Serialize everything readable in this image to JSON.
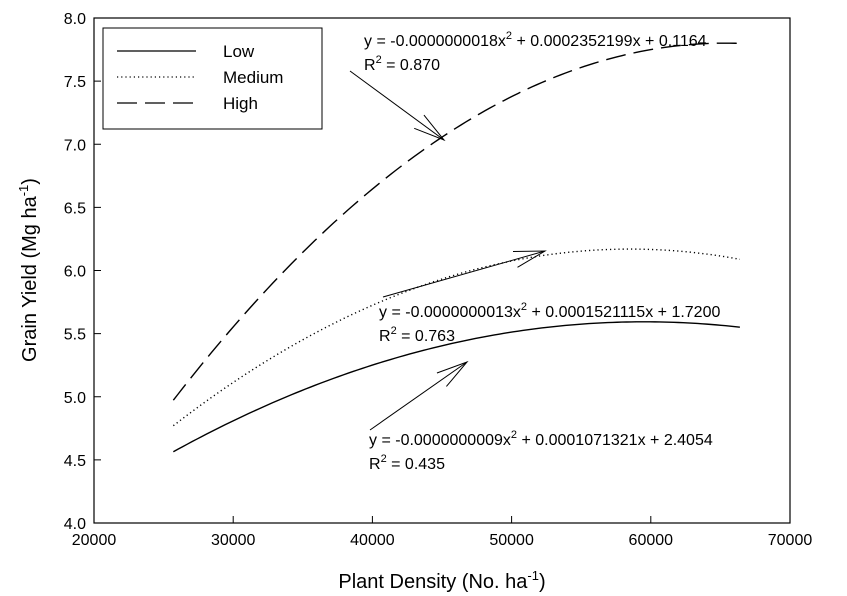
{
  "chart_data": {
    "type": "line",
    "title": "",
    "xlabel": "Plant Density (No. ha",
    "xlabel_sup": "-1",
    "xlabel_tail": ")",
    "ylabel": "Grain Yield (Mg ha",
    "ylabel_sup": "-1",
    "ylabel_tail": ")",
    "xlim": [
      20000,
      70000
    ],
    "ylim": [
      4.0,
      8.0
    ],
    "x_ticks": [
      20000,
      30000,
      40000,
      50000,
      60000,
      70000
    ],
    "x_tick_labels": [
      "20000",
      "30000",
      "40000",
      "50000",
      "60000",
      "70000"
    ],
    "y_ticks": [
      4.0,
      4.5,
      5.0,
      5.5,
      6.0,
      6.5,
      7.0,
      7.5,
      8.0
    ],
    "y_tick_labels": [
      "4.0",
      "4.5",
      "5.0",
      "5.5",
      "6.0",
      "6.5",
      "7.0",
      "7.5",
      "8.0"
    ],
    "grid": false,
    "legend_position": "top-left",
    "series": [
      {
        "name": "Low",
        "style": "solid",
        "x_range": [
          25700,
          66400
        ],
        "coefficients": {
          "a": -9e-10,
          "b": 0.0001071321,
          "c": 2.4054
        },
        "equation_parts": [
          "y = -0.0000000009x",
          "2",
          " + 0.0001071321x + 2.4054"
        ],
        "r2_label": "R",
        "r2_sup": "2",
        "r2_value": " = 0.435"
      },
      {
        "name": "Medium",
        "style": "dotted",
        "x_range": [
          25700,
          66400
        ],
        "coefficients": {
          "a": -1.3e-09,
          "b": 0.0001521115,
          "c": 1.72
        },
        "equation_parts": [
          "y = -0.0000000013x",
          "2",
          " + 0.0001521115x + 1.7200"
        ],
        "r2_label": "R",
        "r2_sup": "2",
        "r2_value": " = 0.763"
      },
      {
        "name": "High",
        "style": "dashed",
        "x_range": [
          25700,
          66400
        ],
        "coefficients": {
          "a": -1.8e-09,
          "b": 0.0002352199,
          "c": 0.1164
        },
        "equation_parts": [
          "y = -0.0000000018x",
          "2",
          " + 0.0002352199x + 0.1164"
        ],
        "r2_label": "R",
        "r2_sup": "2",
        "r2_value": " = 0.870"
      }
    ]
  }
}
